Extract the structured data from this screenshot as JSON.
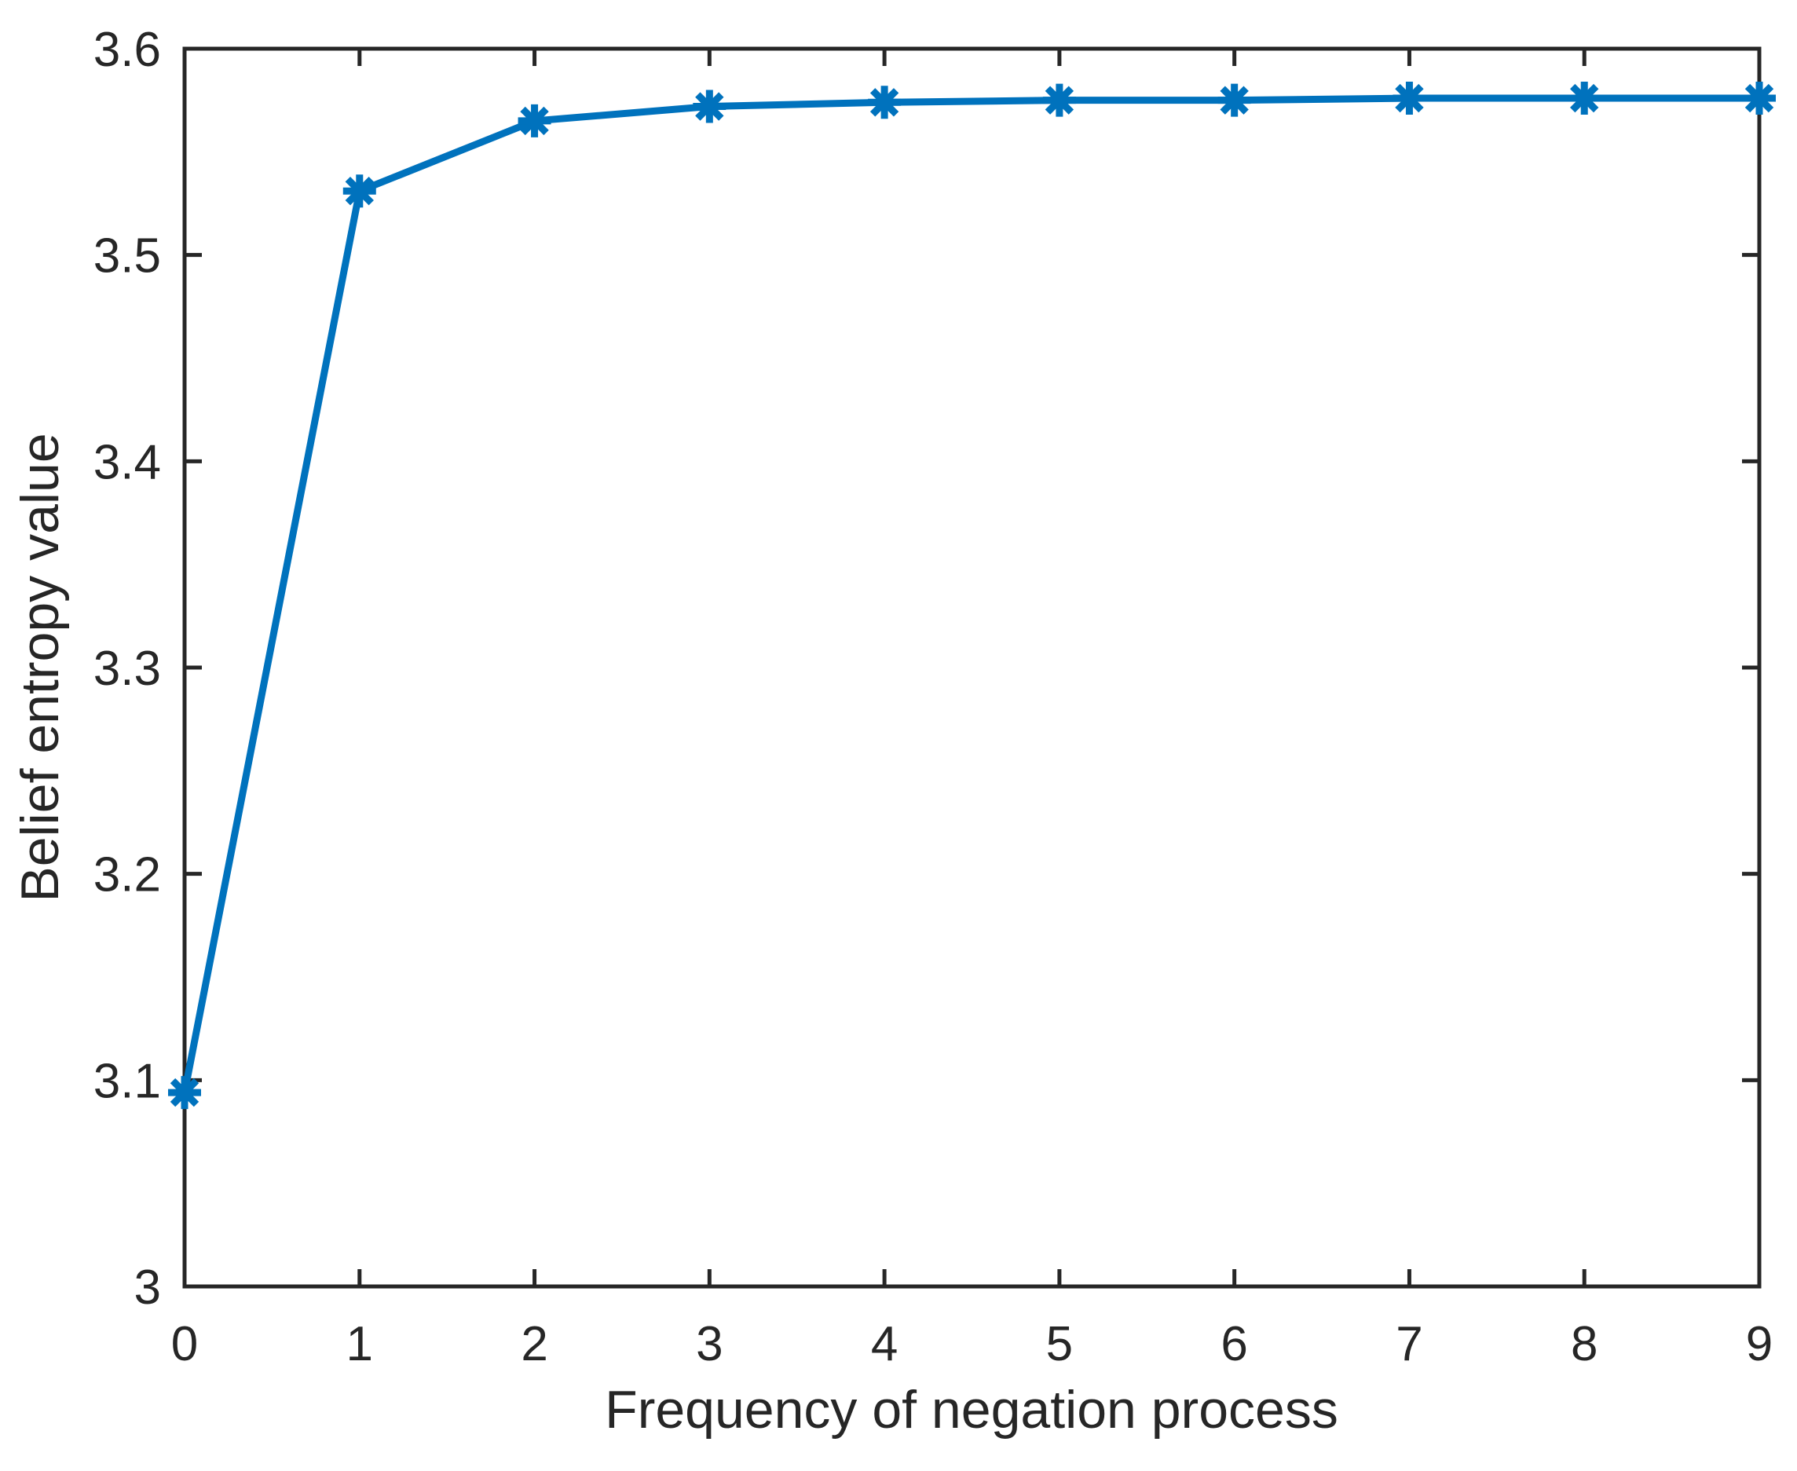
{
  "chart_data": {
    "type": "line",
    "title": "",
    "xlabel": "Frequency of negation process",
    "ylabel": "Belief entropy value",
    "x": [
      0,
      1,
      2,
      3,
      4,
      5,
      6,
      7,
      8,
      9
    ],
    "series": [
      {
        "name": "Belief entropy value",
        "values": [
          3.094,
          3.531,
          3.565,
          3.572,
          3.574,
          3.575,
          3.575,
          3.576,
          3.576,
          3.576
        ]
      }
    ],
    "xlim": [
      0,
      9
    ],
    "ylim": [
      3.0,
      3.6
    ],
    "xticks": [
      0,
      1,
      2,
      3,
      4,
      5,
      6,
      7,
      8,
      9
    ],
    "xtick_labels": [
      "0",
      "1",
      "2",
      "3",
      "4",
      "5",
      "6",
      "7",
      "8",
      "9"
    ],
    "yticks": [
      3.0,
      3.1,
      3.2,
      3.3,
      3.4,
      3.5,
      3.6
    ],
    "ytick_labels": [
      "3",
      "3.1",
      "3.2",
      "3.3",
      "3.4",
      "3.5",
      "3.6"
    ],
    "grid": false,
    "box": true,
    "legend_position": "none",
    "line_color": "#0072BD",
    "marker": "asterisk",
    "marker_color": "#0072BD",
    "axis_color": "#262626",
    "background_color": "#ffffff"
  }
}
